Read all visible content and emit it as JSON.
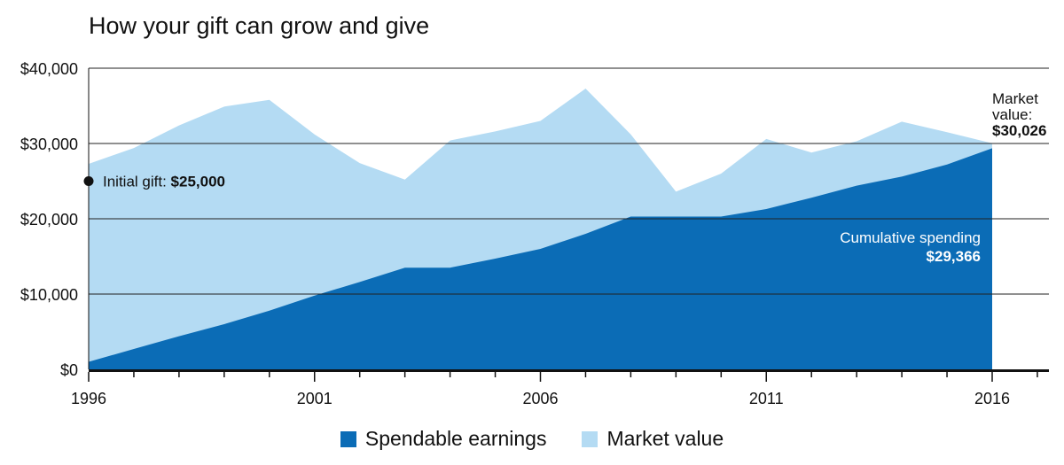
{
  "title": "How your gift can grow and give",
  "colors": {
    "spendable": "#0b6cb6",
    "market": "#b4dbf3",
    "gridline": "#222222",
    "axis": "#111111",
    "text_dark": "#111111",
    "text_light": "#ffffff"
  },
  "annotations": {
    "initial_gift_label": "Initial gift: ",
    "initial_gift_value": "$25,000",
    "market_value_line1": "Market",
    "market_value_line2": "value:",
    "market_value_amount": "$30,026",
    "cumulative_label": "Cumulative spending",
    "cumulative_amount": "$29,366"
  },
  "legend": [
    {
      "label": "Spendable earnings",
      "color": "#0b6cb6"
    },
    {
      "label": "Market value",
      "color": "#b4dbf3"
    }
  ],
  "chart_data": {
    "type": "area",
    "x": [
      1996,
      1997,
      1998,
      1999,
      2000,
      2001,
      2002,
      2003,
      2004,
      2005,
      2006,
      2007,
      2008,
      2009,
      2010,
      2011,
      2012,
      2013,
      2014,
      2015,
      2016
    ],
    "xlim": [
      1996,
      2017
    ],
    "ylim": [
      0,
      40000
    ],
    "x_ticks": [
      1996,
      2001,
      2006,
      2011,
      2016
    ],
    "x_tick_labels": [
      "1996",
      "2001",
      "2006",
      "2011",
      "2016"
    ],
    "y_ticks": [
      0,
      10000,
      20000,
      30000,
      40000
    ],
    "y_tick_labels": [
      "$0",
      "$10,000",
      "$20,000",
      "$30,000",
      "$40,000"
    ],
    "grid": true,
    "legend_position": "bottom",
    "series": [
      {
        "name": "Market value",
        "values": [
          27300,
          29400,
          32400,
          34900,
          35800,
          31200,
          27400,
          25200,
          30400,
          31600,
          33000,
          37300,
          31200,
          23600,
          26000,
          30600,
          28800,
          30300,
          32900,
          31500,
          30026
        ]
      },
      {
        "name": "Spendable earnings",
        "values": [
          1000,
          2700,
          4400,
          6000,
          7800,
          9800,
          11600,
          13500,
          13500,
          14700,
          16000,
          18000,
          20300,
          20300,
          20300,
          21300,
          22800,
          24400,
          25600,
          27200,
          29366
        ]
      }
    ],
    "points": [
      {
        "x": 1996,
        "y": 25000,
        "label": "Initial gift: $25,000"
      }
    ]
  }
}
